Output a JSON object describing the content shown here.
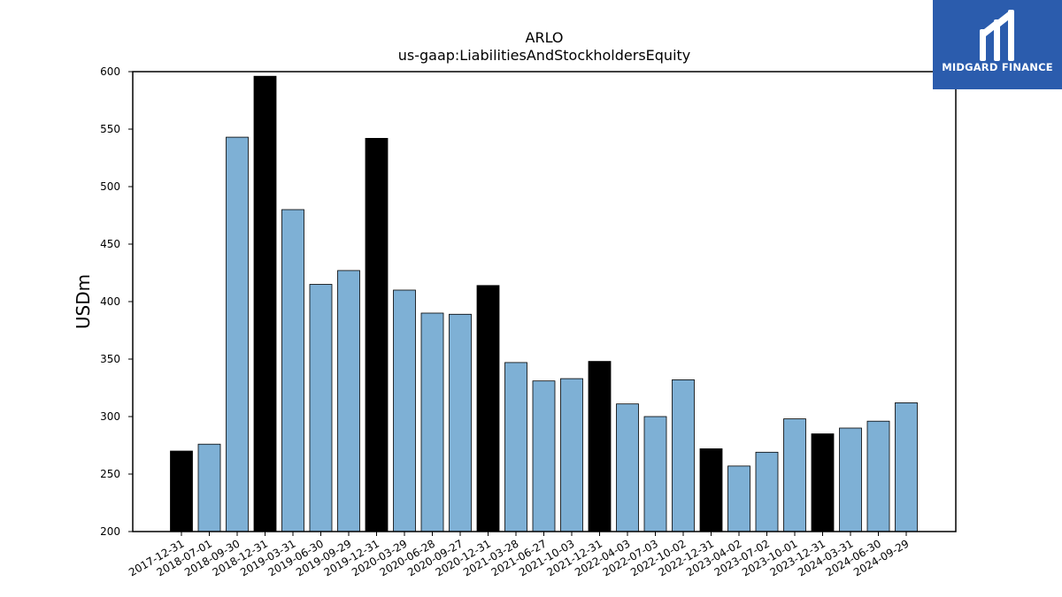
{
  "brand": {
    "name": "MIDGARD FINANCE",
    "logo_icon": "midgard-logo-icon",
    "background": "#2b5cad"
  },
  "chart_data": {
    "type": "bar",
    "title": "ARLO",
    "subtitle": "us-gaap:LiabilitiesAndStockholdersEquity",
    "xlabel": "",
    "ylabel": "USDm",
    "ylim": [
      200,
      600
    ],
    "yticks": [
      200,
      250,
      300,
      350,
      400,
      450,
      500,
      550,
      600
    ],
    "grid": false,
    "colors": {
      "quarterly": "#7eb0d5",
      "annual": "#000000"
    },
    "categories": [
      "2017-12-31",
      "2018-07-01",
      "2018-09-30",
      "2018-12-31",
      "2019-03-31",
      "2019-06-30",
      "2019-09-29",
      "2019-12-31",
      "2020-03-29",
      "2020-06-28",
      "2020-09-27",
      "2020-12-31",
      "2021-03-28",
      "2021-06-27",
      "2021-10-03",
      "2021-12-31",
      "2022-04-03",
      "2022-07-03",
      "2022-10-02",
      "2022-12-31",
      "2023-04-02",
      "2023-07-02",
      "2023-10-01",
      "2023-12-31",
      "2024-03-31",
      "2024-06-30",
      "2024-09-29"
    ],
    "values": [
      270,
      276,
      543,
      596,
      480,
      415,
      427,
      542,
      410,
      390,
      389,
      414,
      347,
      331,
      333,
      348,
      311,
      300,
      332,
      272,
      257,
      269,
      298,
      285,
      290,
      296,
      312
    ],
    "annual": [
      true,
      false,
      false,
      true,
      false,
      false,
      false,
      true,
      false,
      false,
      false,
      true,
      false,
      false,
      false,
      true,
      false,
      false,
      false,
      true,
      false,
      false,
      false,
      true,
      false,
      false,
      false
    ]
  }
}
